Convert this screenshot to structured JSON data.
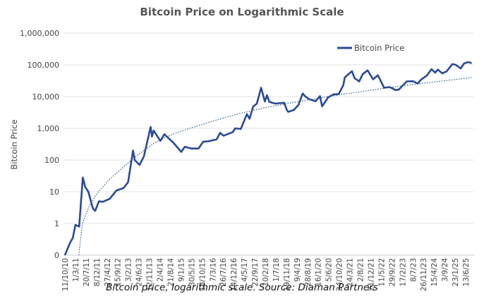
{
  "chart_data": {
    "type": "line",
    "title": "Bitcoin Price on Logarithmic Scale",
    "caption": "Bitcoin price, logarithmic scale. Source: Diaman Partners",
    "xlabel": "",
    "ylabel": "Bitcoin Price",
    "yscale": "log",
    "ylim": [
      0.1,
      1000000
    ],
    "yticks": [
      {
        "v": 0.1,
        "label": "0"
      },
      {
        "v": 1,
        "label": "1"
      },
      {
        "v": 10,
        "label": "10"
      },
      {
        "v": 100,
        "label": "100"
      },
      {
        "v": 1000,
        "label": "1,000"
      },
      {
        "v": 10000,
        "label": "10,000"
      },
      {
        "v": 100000,
        "label": "100,000"
      },
      {
        "v": 1000000,
        "label": "1,000,000"
      }
    ],
    "xticks": [
      "11/10/10",
      "1/3/11",
      "20/7/11",
      "8/12/11",
      "27/4/12",
      "15/9/12",
      "3/2/13",
      "24/6/13",
      "12/11/13",
      "2/4/14",
      "21/8/14",
      "9/1/15",
      "30/5/15",
      "18/10/15",
      "7/3/16",
      "26/7/16",
      "14/12/16",
      "4/5/17",
      "22/9/17",
      "10/2/18",
      "1/7/18",
      "19/11/18",
      "9/4/19",
      "28/8/19",
      "16/1/20",
      "5/6/20",
      "24/10/20",
      "14/3/21",
      "2/8/21",
      "21/12/21",
      "11/5/22",
      "29/9/22",
      "17/2/23",
      "8/7/23",
      "26/11/23",
      "15/4/24",
      "3/9/24",
      "23/1/25",
      "13/6/25"
    ],
    "grid": "horizontal",
    "legend": "top-right",
    "colors": {
      "price": "#2a4a94",
      "trend": "#2a5a7a"
    },
    "series": [
      {
        "name": "Bitcoin Price",
        "style": "solid",
        "points": [
          [
            "2010-10-11",
            0.1
          ],
          [
            "2010-12-20",
            0.25
          ],
          [
            "2011-01-25",
            0.35
          ],
          [
            "2011-03-01",
            0.9
          ],
          [
            "2011-04-20",
            0.8
          ],
          [
            "2011-06-08",
            28
          ],
          [
            "2011-07-10",
            14
          ],
          [
            "2011-08-20",
            10
          ],
          [
            "2011-10-20",
            3
          ],
          [
            "2011-11-20",
            2.5
          ],
          [
            "2012-01-10",
            5
          ],
          [
            "2012-03-01",
            4.8
          ],
          [
            "2012-06-01",
            6
          ],
          [
            "2012-09-01",
            11
          ],
          [
            "2012-12-01",
            13
          ],
          [
            "2013-02-01",
            20
          ],
          [
            "2013-04-09",
            200
          ],
          [
            "2013-05-01",
            100
          ],
          [
            "2013-07-05",
            70
          ],
          [
            "2013-09-01",
            130
          ],
          [
            "2013-11-30",
            1100
          ],
          [
            "2013-12-18",
            550
          ],
          [
            "2014-01-10",
            850
          ],
          [
            "2014-04-10",
            400
          ],
          [
            "2014-06-01",
            650
          ],
          [
            "2014-10-01",
            350
          ],
          [
            "2015-01-14",
            180
          ],
          [
            "2015-03-01",
            260
          ],
          [
            "2015-06-01",
            230
          ],
          [
            "2015-09-01",
            230
          ],
          [
            "2015-11-05",
            380
          ],
          [
            "2016-01-15",
            390
          ],
          [
            "2016-05-01",
            450
          ],
          [
            "2016-06-17",
            720
          ],
          [
            "2016-08-01",
            580
          ],
          [
            "2016-12-01",
            750
          ],
          [
            "2017-01-05",
            1000
          ],
          [
            "2017-03-20",
            950
          ],
          [
            "2017-06-10",
            2800
          ],
          [
            "2017-07-15",
            2000
          ],
          [
            "2017-09-01",
            4800
          ],
          [
            "2017-10-20",
            6000
          ],
          [
            "2017-12-17",
            19000
          ],
          [
            "2018-02-05",
            7000
          ],
          [
            "2018-03-05",
            11000
          ],
          [
            "2018-04-05",
            6800
          ],
          [
            "2018-06-25",
            6000
          ],
          [
            "2018-10-20",
            6400
          ],
          [
            "2018-11-25",
            3800
          ],
          [
            "2018-12-15",
            3300
          ],
          [
            "2019-03-01",
            3800
          ],
          [
            "2019-05-01",
            5500
          ],
          [
            "2019-06-26",
            12500
          ],
          [
            "2019-08-01",
            10000
          ],
          [
            "2019-09-25",
            8200
          ],
          [
            "2019-12-15",
            7100
          ],
          [
            "2020-02-12",
            10300
          ],
          [
            "2020-03-12",
            4900
          ],
          [
            "2020-06-01",
            9500
          ],
          [
            "2020-08-15",
            11800
          ],
          [
            "2020-10-20",
            12000
          ],
          [
            "2020-12-20",
            23000
          ],
          [
            "2021-01-08",
            40000
          ],
          [
            "2021-04-14",
            63000
          ],
          [
            "2021-05-20",
            38000
          ],
          [
            "2021-07-20",
            30000
          ],
          [
            "2021-09-05",
            51000
          ],
          [
            "2021-11-10",
            67000
          ],
          [
            "2022-01-22",
            35000
          ],
          [
            "2022-03-28",
            47000
          ],
          [
            "2022-06-18",
            19000
          ],
          [
            "2022-09-01",
            20000
          ],
          [
            "2022-11-20",
            16000
          ],
          [
            "2023-01-01",
            16500
          ],
          [
            "2023-03-15",
            25000
          ],
          [
            "2023-04-14",
            30000
          ],
          [
            "2023-07-10",
            30500
          ],
          [
            "2023-09-10",
            25800
          ],
          [
            "2023-10-25",
            34000
          ],
          [
            "2024-01-10",
            46000
          ],
          [
            "2024-03-14",
            73000
          ],
          [
            "2024-05-01",
            57000
          ],
          [
            "2024-06-05",
            71000
          ],
          [
            "2024-08-05",
            54000
          ],
          [
            "2024-10-01",
            62000
          ],
          [
            "2024-12-17",
            106000
          ],
          [
            "2025-02-01",
            100000
          ],
          [
            "2025-04-08",
            77000
          ],
          [
            "2025-05-22",
            111000
          ],
          [
            "2025-07-14",
            122000
          ],
          [
            "2025-08-10",
            119000
          ],
          [
            "2025-08-31",
            112000
          ]
        ]
      },
      {
        "style": "dotted",
        "points": [
          [
            "2011-04-15",
            0.1
          ],
          [
            "2011-06-01",
            1
          ],
          [
            "2011-09-01",
            3.5
          ],
          [
            "2012-01-01",
            10
          ],
          [
            "2012-06-01",
            25
          ],
          [
            "2013-01-01",
            70
          ],
          [
            "2013-06-01",
            140
          ],
          [
            "2014-01-01",
            320
          ],
          [
            "2014-06-01",
            500
          ],
          [
            "2015-01-01",
            800
          ],
          [
            "2016-01-01",
            1500
          ],
          [
            "2017-01-01",
            2700
          ],
          [
            "2018-01-01",
            4300
          ],
          [
            "2019-01-01",
            6200
          ],
          [
            "2020-01-01",
            8700
          ],
          [
            "2021-01-01",
            12000
          ],
          [
            "2022-01-01",
            16000
          ],
          [
            "2023-01-01",
            21000
          ],
          [
            "2024-01-01",
            27000
          ],
          [
            "2025-01-01",
            34000
          ],
          [
            "2025-08-31",
            40000
          ]
        ]
      }
    ]
  }
}
